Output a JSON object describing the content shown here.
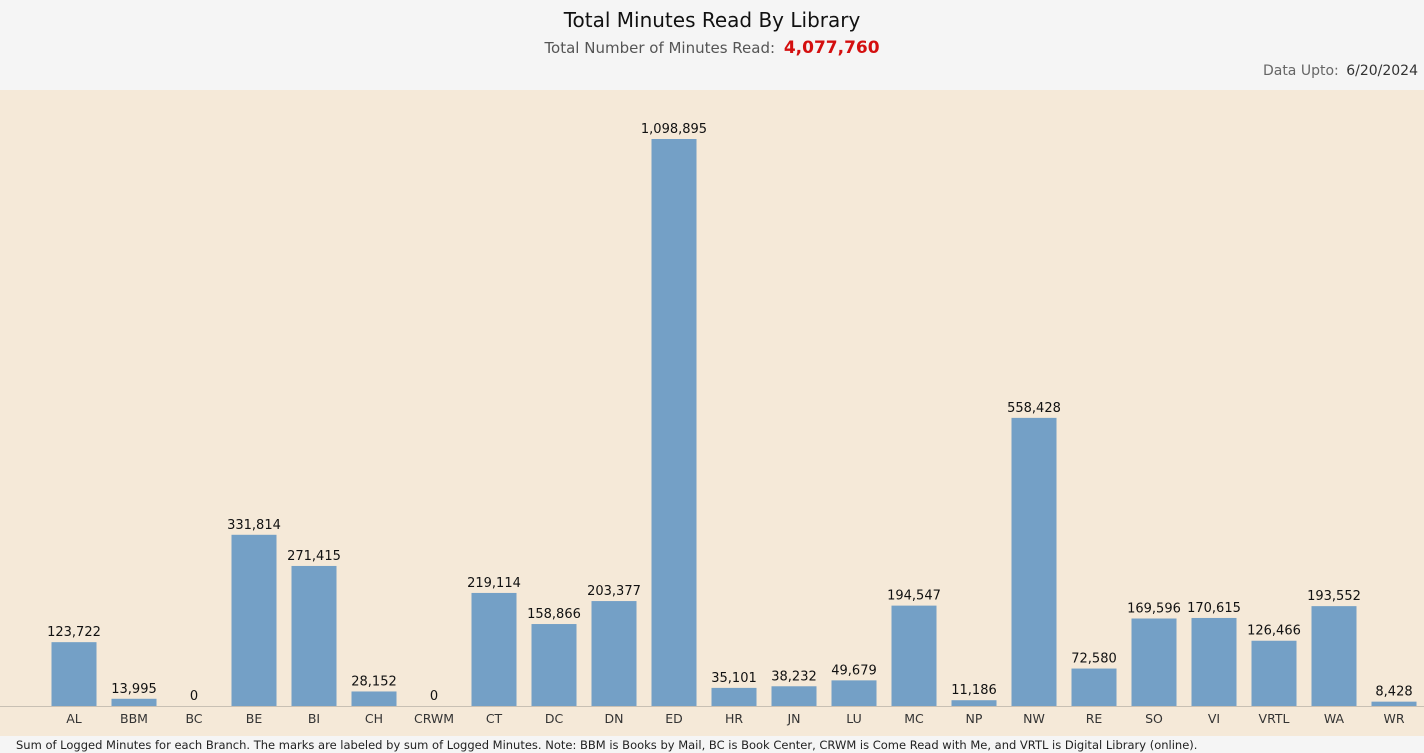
{
  "header": {
    "title": "Total Minutes Read By Library",
    "subtitle_label": "Total Number of Minutes Read:",
    "subtitle_value": "4,077,760",
    "data_upto_label": "Data Upto:",
    "data_upto_value": "6/20/2024"
  },
  "footnote": "Sum of Logged Minutes for each Branch.  The marks are labeled by sum of Logged Minutes. Note: BBM is Books by Mail, BC is Book Center, CRWM is Come Read with Me, and VRTL is Digital Library (online).",
  "colors": {
    "bar": "#74a0c6",
    "plot_bg": "#f5e9d8",
    "total": "#d40f0f"
  },
  "chart_data": {
    "type": "bar",
    "title": "Total Minutes Read By Library",
    "xlabel": "",
    "ylabel": "",
    "grid": false,
    "categories": [
      "AL",
      "BBM",
      "BC",
      "BE",
      "BI",
      "CH",
      "CRWM",
      "CT",
      "DC",
      "DN",
      "ED",
      "HR",
      "JN",
      "LU",
      "MC",
      "NP",
      "NW",
      "RE",
      "SO",
      "VI",
      "VRTL",
      "WA",
      "WR"
    ],
    "values": [
      123722,
      13995,
      0,
      331814,
      271415,
      28152,
      0,
      219114,
      158866,
      203377,
      1098895,
      35101,
      38232,
      49679,
      194547,
      11186,
      558428,
      72580,
      169596,
      170615,
      126466,
      193552,
      8428
    ],
    "labels": [
      "123,722",
      "13,995",
      "0",
      "331,814",
      "271,415",
      "28,152",
      "0",
      "219,114",
      "158,866",
      "203,377",
      "1,098,895",
      "35,101",
      "38,232",
      "49,679",
      "194,547",
      "11,186",
      "558,428",
      "72,580",
      "169,596",
      "170,615",
      "126,466",
      "193,552",
      "8,428"
    ],
    "ylim": [
      0,
      1098895
    ]
  }
}
